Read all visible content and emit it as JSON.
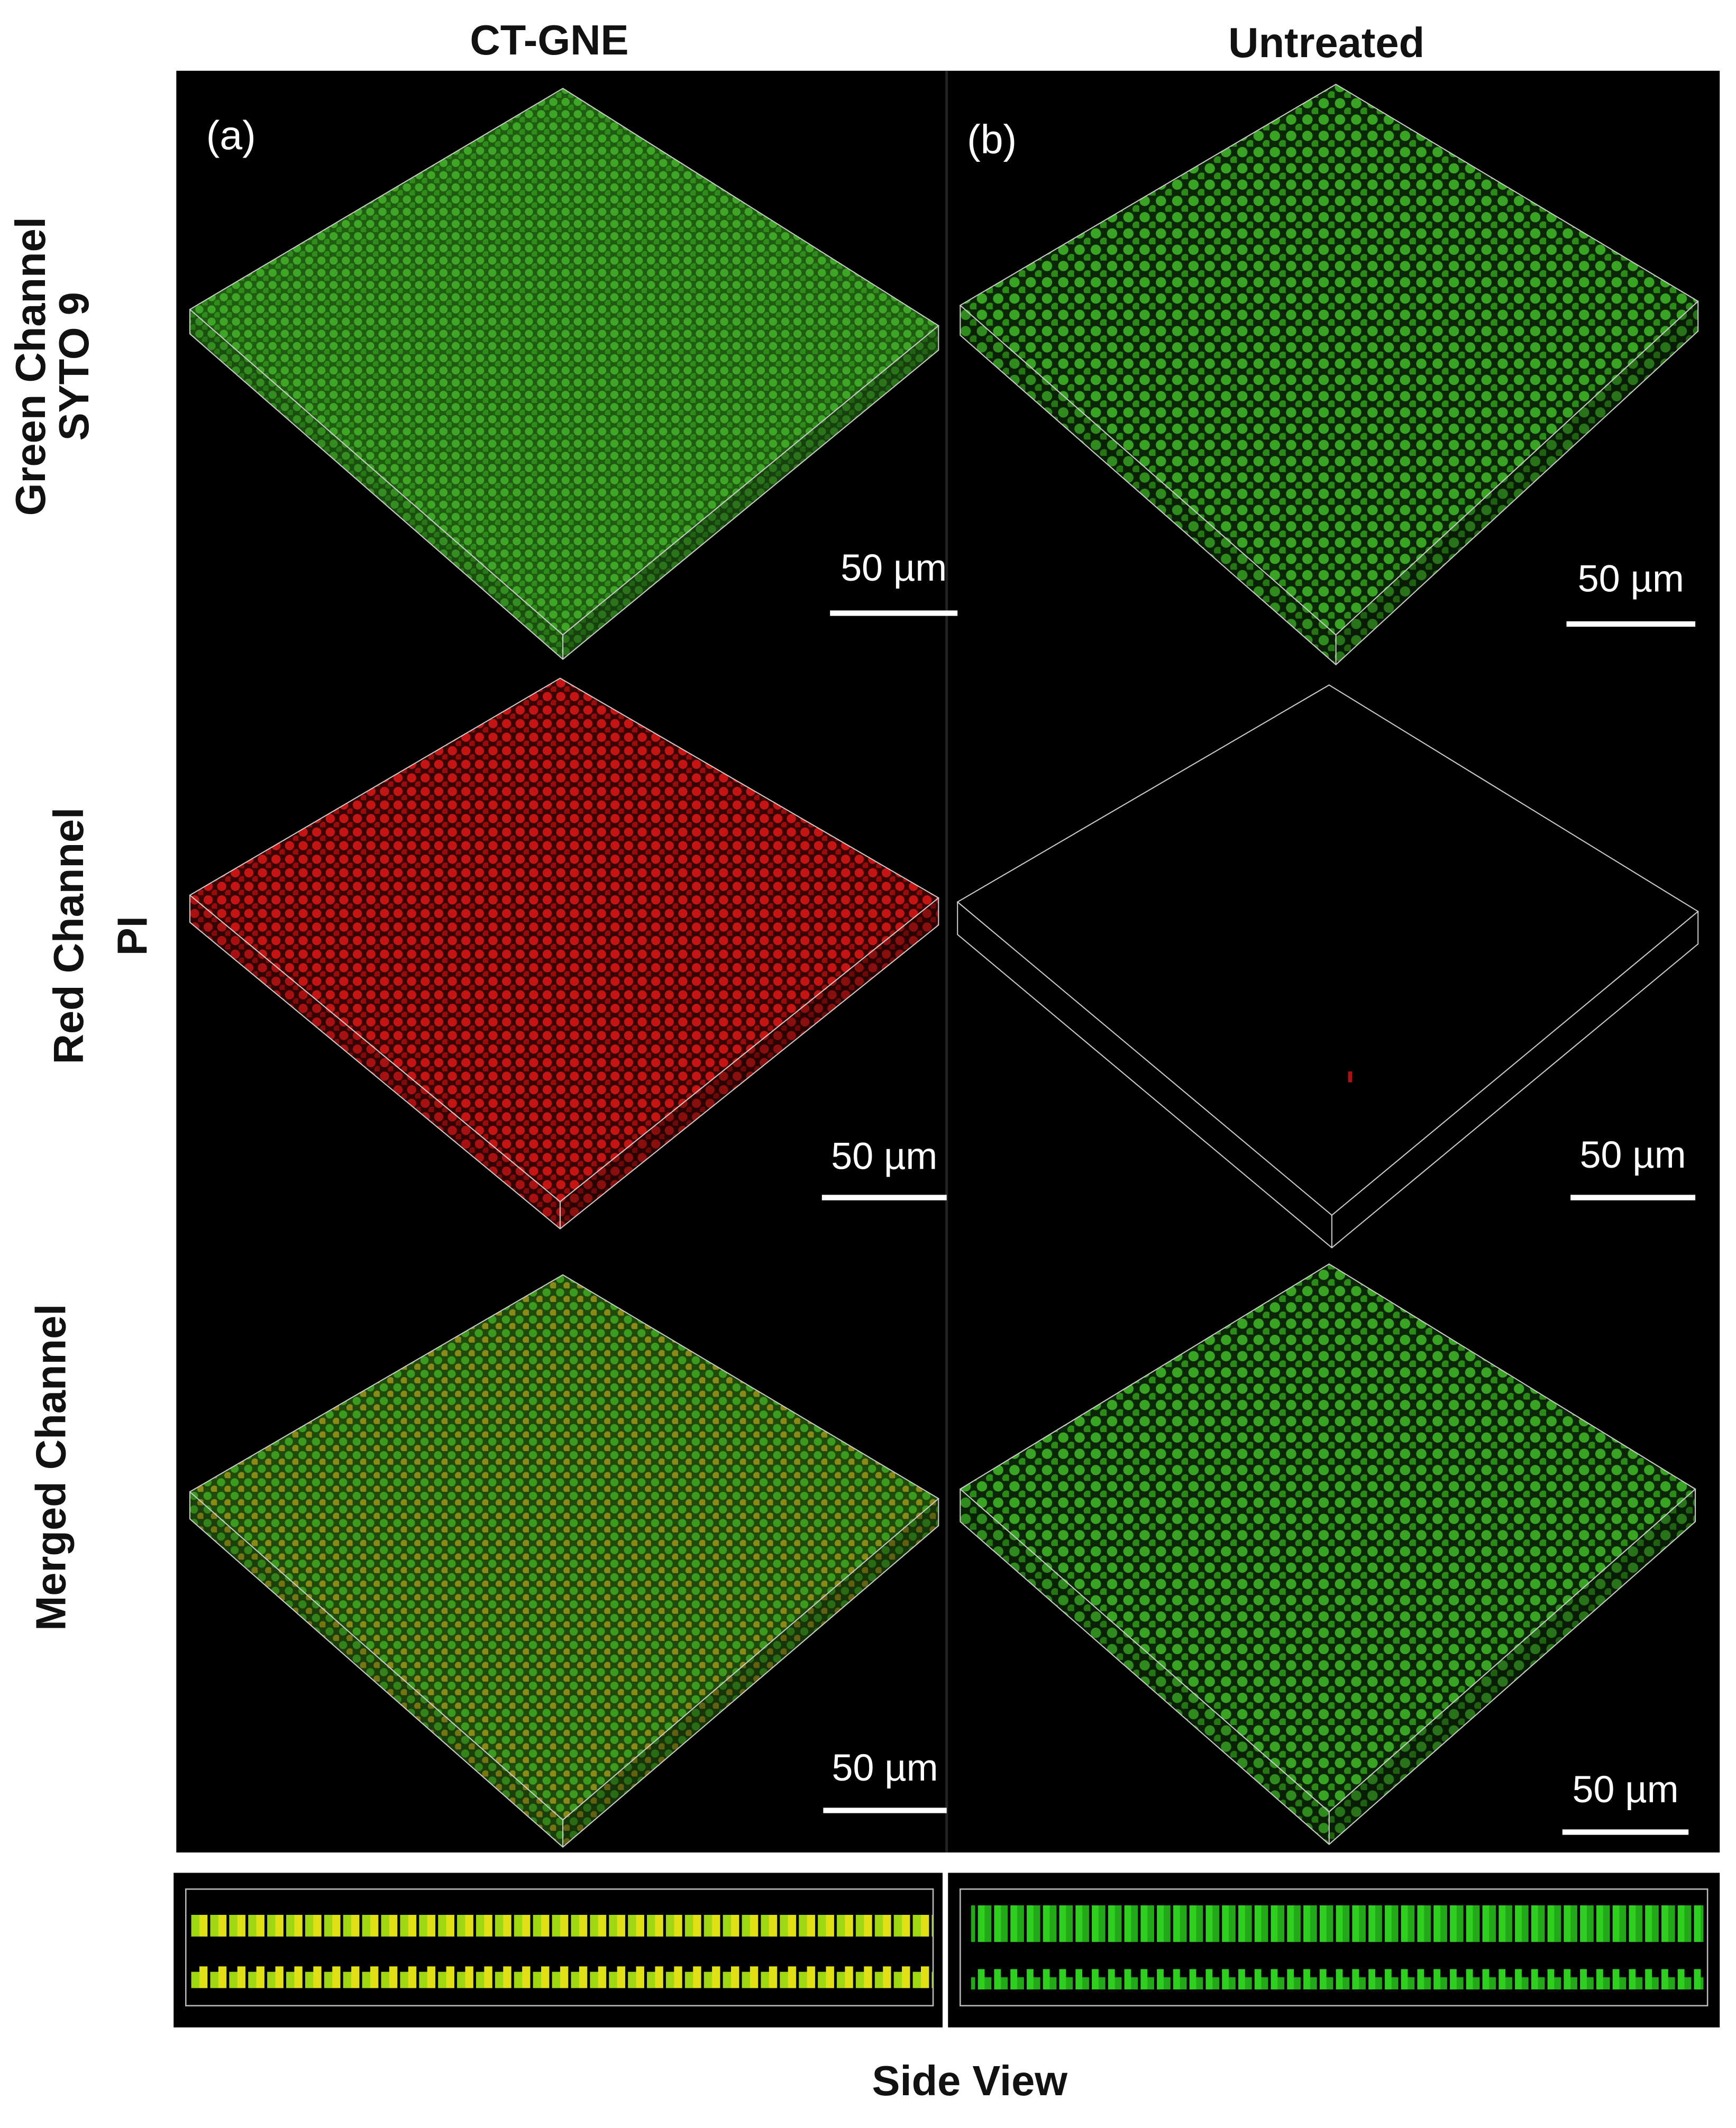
{
  "header": {
    "columns": [
      "CT-GNE",
      "Untreated"
    ]
  },
  "rows": [
    [
      "Green Channel",
      "SYTO 9"
    ],
    [
      "Red Channel",
      "PI"
    ],
    [
      "Merged Channel"
    ]
  ],
  "panel_labels": [
    "(a)",
    "(b)"
  ],
  "scale_bars": [
    "50 µm",
    "50 µm",
    "50 µm",
    "50 µm",
    "50 µm",
    "50 µm"
  ],
  "footer": {
    "title": "Side View"
  }
}
